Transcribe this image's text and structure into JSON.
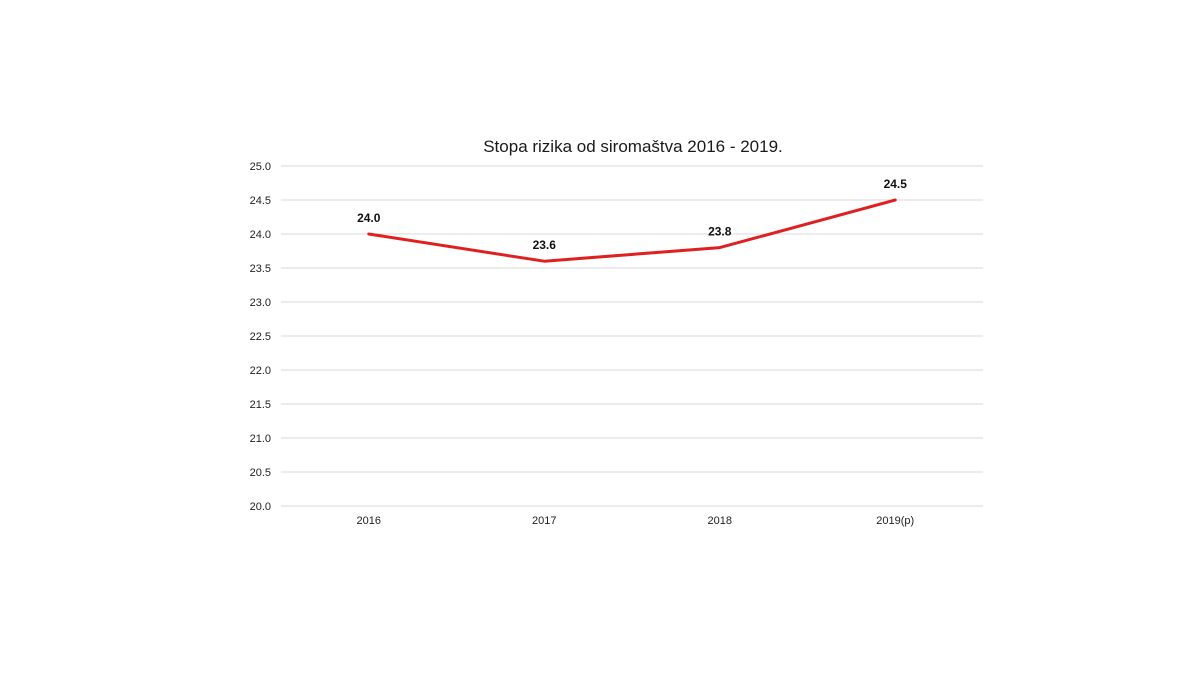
{
  "chart_data": {
    "type": "line",
    "title": "Stopa rizika od siromaštva 2016 - 2019.",
    "categories": [
      "2016",
      "2017",
      "2018",
      "2019(p)"
    ],
    "series": [
      {
        "values": [
          24.0,
          23.6,
          23.8,
          24.5
        ],
        "data_labels": [
          "24.0",
          "23.6",
          "23.8",
          "24.5"
        ],
        "color": "#e02020"
      }
    ],
    "ylim": [
      20.0,
      25.0
    ],
    "yticks": [
      "20.0",
      "20.5",
      "21.0",
      "21.5",
      "22.0",
      "22.5",
      "23.0",
      "23.5",
      "24.0",
      "24.5",
      "25.0"
    ],
    "grid": true,
    "legend": "none"
  }
}
